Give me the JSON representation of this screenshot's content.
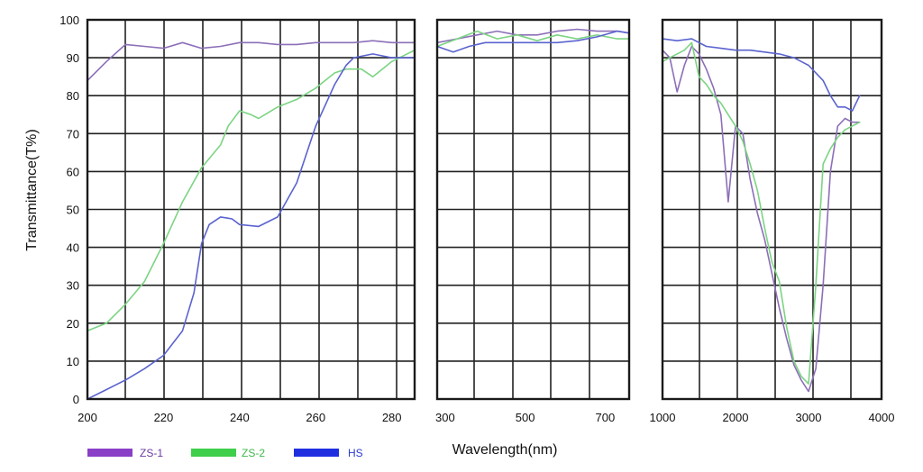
{
  "chart_data": {
    "type": "line",
    "title": "",
    "xlabel": "Wavelength(nm)",
    "ylabel": "Transmittance(T%)",
    "ylim": [
      0,
      100
    ],
    "y_ticks": [
      "0",
      "10",
      "20",
      "30",
      "40",
      "50",
      "60",
      "70",
      "80",
      "90",
      "100"
    ],
    "grid": true,
    "legend_placement": "bottom-left",
    "colors": {
      "ZS-1": "#8c6fb8",
      "ZS-2": "#7cd483",
      "HS": "#5a63cf",
      "frame": "#1a1a1a",
      "legend_zs1": "#8a3fc7",
      "legend_zs2": "#3fcf4a",
      "legend_hs": "#1f2fe0",
      "legend_text_zs1": "#6a3aa0",
      "legend_text_zs2": "#3fb84a",
      "legend_text_hs": "#2a3ad0"
    },
    "panels": [
      {
        "id": "uv",
        "xlim": [
          200,
          286
        ],
        "x_ticks": [
          "200",
          "220",
          "240",
          "260",
          "280"
        ],
        "series": [
          {
            "name": "ZS-1",
            "x": [
              200,
              205,
              210,
              215,
              220,
              225,
              230,
              235,
              240,
              245,
              250,
              255,
              260,
              265,
              270,
              275,
              280,
              286
            ],
            "y": [
              84,
              89,
              93.5,
              93,
              92.5,
              94,
              92.5,
              93,
              94,
              94,
              93.5,
              93.5,
              94,
              94,
              94,
              94.5,
              94,
              94
            ]
          },
          {
            "name": "ZS-2",
            "x": [
              200,
              205,
              210,
              215,
              220,
              225,
              230,
              235,
              237,
              240,
              243,
              245,
              250,
              255,
              260,
              265,
              268,
              272,
              275,
              280,
              286
            ],
            "y": [
              18,
              20,
              25,
              31,
              41,
              52,
              61,
              67,
              72,
              76,
              75,
              74,
              77,
              79,
              82,
              86,
              87,
              87,
              85,
              89,
              92
            ]
          },
          {
            "name": "HS",
            "x": [
              200,
              205,
              210,
              215,
              220,
              225,
              228,
              230,
              232,
              235,
              238,
              240,
              245,
              250,
              255,
              260,
              265,
              268,
              270,
              275,
              280,
              286
            ],
            "y": [
              0,
              2.5,
              5,
              8,
              11.5,
              18,
              28,
              41,
              46,
              48,
              47.5,
              46,
              45.5,
              48,
              57,
              72,
              83,
              88,
              90,
              91,
              90,
              90
            ]
          }
        ]
      },
      {
        "id": "vis",
        "xlim": [
          280,
          760
        ],
        "x_ticks": [
          "300",
          "500",
          "700"
        ],
        "series": [
          {
            "name": "ZS-1",
            "x": [
              280,
              330,
              380,
              430,
              480,
              530,
              580,
              630,
              680,
              730,
              760
            ],
            "y": [
              94,
              95,
              96,
              97,
              96,
              96,
              97,
              97.5,
              97,
              97,
              96.5
            ]
          },
          {
            "name": "ZS-2",
            "x": [
              280,
              330,
              380,
              430,
              480,
              530,
              580,
              630,
              680,
              730,
              760
            ],
            "y": [
              93,
              95,
              97,
              95,
              96,
              94.5,
              96,
              95,
              96,
              95,
              95
            ]
          },
          {
            "name": "HS",
            "x": [
              280,
              320,
              360,
              400,
              440,
              480,
              530,
              580,
              630,
              680,
              730,
              760
            ],
            "y": [
              93,
              91.5,
              93,
              94,
              94,
              94,
              94,
              94,
              94.5,
              95.5,
              97,
              96.5
            ]
          }
        ]
      },
      {
        "id": "ir",
        "xlim": [
          1000,
          4000
        ],
        "x_ticks": [
          "1000",
          "2000",
          "3000",
          "4000"
        ],
        "series": [
          {
            "name": "ZS-1",
            "x": [
              1000,
              1100,
              1200,
              1300,
              1400,
              1500,
              1600,
              1700,
              1800,
              1900,
              2000,
              2100,
              2200,
              2300,
              2400,
              2500,
              2600,
              2700,
              2800,
              2900,
              3000,
              3100,
              3200,
              3300,
              3400,
              3500,
              3600,
              3700
            ],
            "y": [
              92,
              90,
              81,
              88,
              93,
              91,
              87,
              82,
              75,
              52,
              72,
              70,
              58,
              49,
              42,
              33,
              24,
              16,
              9,
              5,
              2,
              8,
              30,
              60,
              72,
              74,
              73,
              73
            ]
          },
          {
            "name": "ZS-2",
            "x": [
              1000,
              1100,
              1200,
              1300,
              1400,
              1500,
              1600,
              1700,
              1800,
              1900,
              2000,
              2100,
              2200,
              2300,
              2400,
              2500,
              2600,
              2700,
              2800,
              2900,
              3000,
              3100,
              3200,
              3300,
              3400,
              3500,
              3600,
              3700
            ],
            "y": [
              89,
              90,
              91,
              92,
              94,
              85,
              83,
              80,
              78,
              75,
              72,
              68,
              62,
              55,
              45,
              36,
              31,
              19,
              10,
              6,
              4,
              30,
              62,
              66,
              69,
              71,
              72,
              73
            ]
          },
          {
            "name": "HS",
            "x": [
              1000,
              1200,
              1400,
              1600,
              1800,
              2000,
              2200,
              2400,
              2600,
              2800,
              3000,
              3200,
              3300,
              3400,
              3500,
              3600,
              3700
            ],
            "y": [
              95,
              94.5,
              95,
              93,
              92.5,
              92,
              92,
              91.5,
              91,
              90,
              88,
              84,
              80,
              77,
              77,
              76,
              80
            ]
          }
        ]
      }
    ],
    "legend": [
      {
        "name": "ZS-1"
      },
      {
        "name": "ZS-2"
      },
      {
        "name": "HS"
      }
    ]
  }
}
